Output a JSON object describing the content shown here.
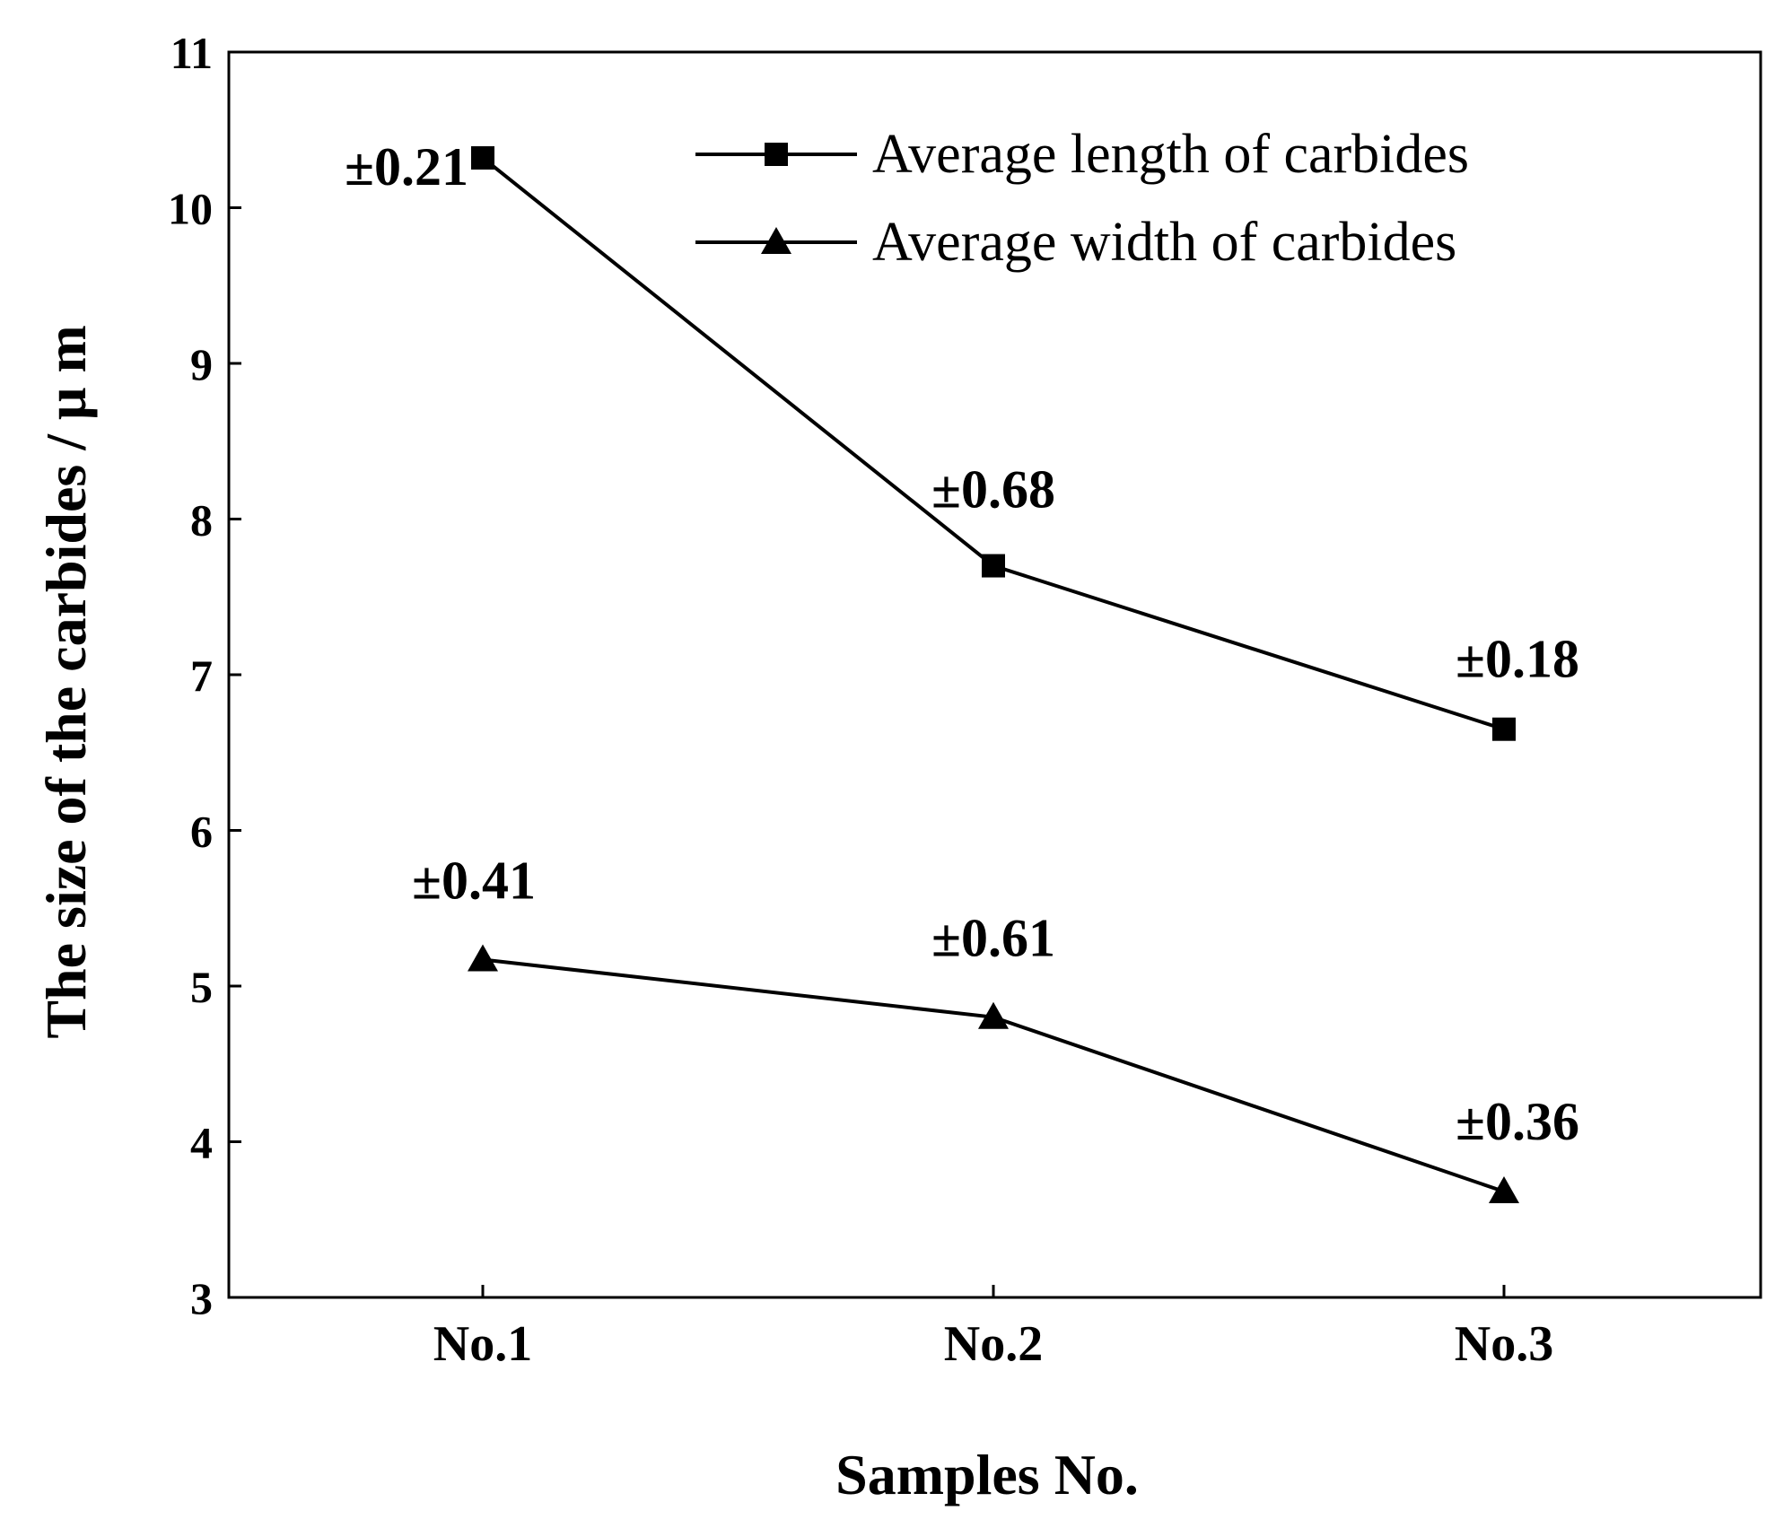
{
  "chart_data": {
    "type": "line",
    "title": "",
    "xlabel": "Samples No.",
    "ylabel": "The size of the carbides / μ m",
    "categories": [
      "No.1",
      "No.2",
      "No.3"
    ],
    "ylim": [
      3,
      11
    ],
    "yticks": [
      "3",
      "4",
      "5",
      "6",
      "7",
      "8",
      "9",
      "10",
      "11"
    ],
    "grid": false,
    "legend_position": "top-right",
    "series": [
      {
        "name": "Average length of carbides",
        "marker": "square",
        "values": [
          10.32,
          7.7,
          6.65
        ],
        "error_labels": [
          "±0.21",
          "±0.68",
          "±0.18"
        ]
      },
      {
        "name": "Average width of carbides",
        "marker": "triangle",
        "values": [
          5.17,
          4.8,
          3.68
        ],
        "error_labels": [
          "±0.41",
          "±0.61",
          "±0.36"
        ]
      }
    ],
    "colors": {
      "line": "#000000",
      "marker": "#000000",
      "background": "#ffffff"
    }
  }
}
